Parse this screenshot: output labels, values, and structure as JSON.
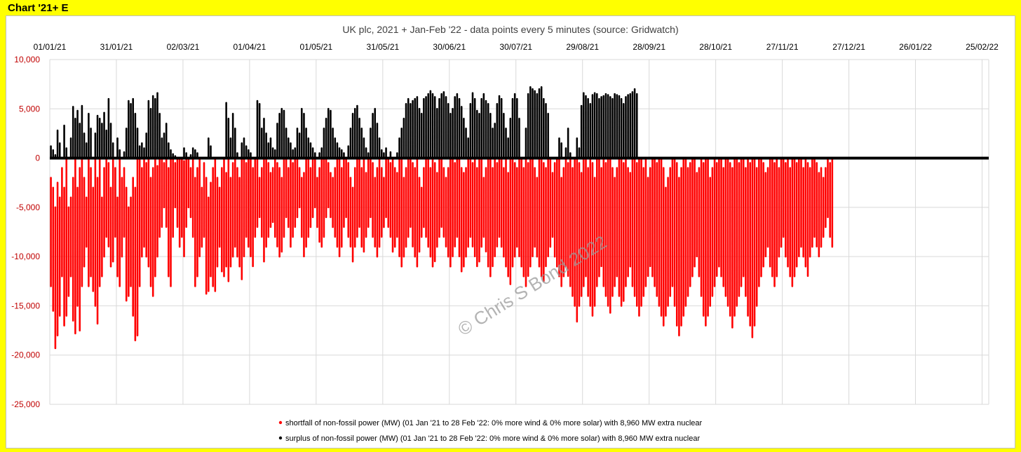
{
  "sheet_label": "Chart '21+ E",
  "watermark": "© Chris S Bond 2022",
  "colors": {
    "shortfall": "#ff0000",
    "surplus": "#000000",
    "y_tick_labels": "#c00000",
    "background": "#ffff00"
  },
  "chart_data": {
    "type": "scatter",
    "title": "UK plc, 2021 + Jan-Feb '22 - data points every 5 minutes (source: Gridwatch)",
    "xlabel": "",
    "ylabel": "",
    "x_tick_labels": [
      "01/01/21",
      "31/01/21",
      "02/03/21",
      "01/04/21",
      "01/05/21",
      "31/05/21",
      "30/06/21",
      "30/07/21",
      "29/08/21",
      "28/09/21",
      "28/10/21",
      "27/11/21",
      "27/12/21",
      "26/01/22",
      "25/02/22"
    ],
    "y_tick_labels": [
      "10,000",
      "5,000",
      "0",
      "-5,000",
      "-10,000",
      "-15,000",
      "-20,000",
      "-25,000"
    ],
    "y_ticks": [
      10000,
      5000,
      0,
      -5000,
      -10000,
      -15000,
      -20000,
      -25000
    ],
    "ylim": [
      -25000,
      10000
    ],
    "xlim": [
      "01/01/21",
      "28/02/22"
    ],
    "grid": true,
    "legend_position": "bottom",
    "series": [
      {
        "name": "shortfall of non-fossil power (MW) (01 Jan '21 to 28 Feb '22: 0% more wind & 0% more solar) with 8,960 MW extra nuclear",
        "color": "#ff0000",
        "y_min_range": [
          -19300,
          0
        ],
        "daily_min": [
          -13000,
          -15500,
          -19300,
          -18000,
          -16000,
          -12000,
          -17000,
          -16000,
          -14000,
          -12000,
          -16500,
          -17800,
          -15000,
          -17500,
          -13000,
          -11000,
          -9000,
          -13000,
          -12000,
          -13500,
          -15000,
          -16800,
          -13000,
          -12000,
          -10000,
          -8000,
          -9000,
          -11000,
          -10500,
          -8000,
          -12000,
          -13000,
          -10000,
          -8000,
          -14500,
          -14000,
          -13000,
          -16000,
          -18500,
          -18000,
          -13000,
          -10000,
          -9000,
          -10000,
          -11000,
          -13000,
          -14000,
          -12000,
          -10000,
          -8000,
          -7000,
          -5000,
          -7000,
          -12000,
          -13000,
          -8000,
          -5000,
          -7000,
          -9000,
          -8000,
          -10000,
          -7000,
          -5000,
          -6000,
          -8000,
          -13000,
          -12000,
          -10000,
          -9000,
          -8000,
          -13800,
          -13500,
          -12000,
          -13000,
          -13500,
          -11000,
          -9000,
          -11500,
          -12000,
          -11000,
          -12500,
          -11000,
          -10000,
          -9000,
          -10000,
          -11000,
          -12300,
          -10000,
          -8000,
          -9000,
          -10000,
          -11000,
          -8000,
          -7000,
          -6000,
          -8000,
          -10500,
          -9000,
          -8000,
          -7000,
          -6500,
          -8000,
          -9000,
          -10000,
          -9500,
          -8000,
          -6000,
          -7000,
          -9000,
          -8000,
          -7000,
          -6000,
          -5000,
          -8000,
          -10000,
          -9000,
          -8000,
          -7000,
          -6000,
          -5000,
          -7000,
          -8500,
          -9000,
          -8000,
          -6000,
          -5000,
          -6000,
          -7000,
          -8000,
          -9000,
          -10000,
          -9000,
          -7000,
          -6000,
          -8000,
          -9000,
          -10500,
          -9000,
          -8000,
          -7000,
          -9000,
          -9500,
          -8000,
          -7000,
          -6000,
          -8000,
          -9000,
          -10000,
          -9000,
          -8000,
          -7000,
          -6000,
          -7000,
          -8000,
          -9500,
          -9000,
          -8000,
          -10000,
          -11000,
          -10000,
          -9000,
          -8000,
          -7000,
          -9000,
          -10000,
          -11000,
          -9500,
          -8000,
          -7000,
          -8000,
          -9000,
          -10000,
          -11000,
          -10500,
          -9000,
          -8000,
          -7000,
          -8000,
          -9000,
          -10000,
          -11000,
          -10000,
          -9000,
          -8000,
          -10000,
          -11500,
          -11000,
          -10000,
          -9000,
          -8000,
          -9000,
          -10000,
          -11000,
          -10500,
          -9000,
          -8000,
          -9500,
          -11000,
          -12000,
          -11000,
          -10000,
          -9000,
          -8000,
          -9000,
          -10000,
          -11000,
          -12000,
          -12800,
          -11000,
          -10000,
          -9000,
          -10000,
          -11000,
          -12000,
          -13000,
          -12000,
          -11000,
          -10000,
          -9000,
          -10000,
          -11000,
          -12000,
          -12500,
          -11000,
          -10000,
          -9000,
          -8000,
          -10000,
          -11000,
          -12000,
          -13000,
          -12000,
          -11000,
          -12000,
          -13000,
          -14000,
          -15000,
          -16600,
          -15000,
          -14000,
          -13000,
          -12000,
          -14000,
          -15000,
          -16000,
          -15000,
          -13000,
          -12000,
          -11000,
          -13000,
          -14000,
          -15000,
          -15700,
          -14000,
          -13000,
          -12000,
          -14000,
          -15000,
          -14500,
          -13000,
          -12000,
          -11000,
          -13000,
          -14000,
          -15000,
          -16000,
          -15000,
          -14000,
          -13000,
          -12000,
          -11000,
          -12000,
          -13000,
          -14000,
          -15000,
          -16000,
          -17000,
          -16000,
          -15000,
          -14000,
          -13000,
          -15000,
          -17000,
          -18000,
          -17000,
          -16000,
          -15000,
          -14000,
          -13000,
          -12000,
          -11000,
          -10000,
          -12000,
          -14000,
          -16000,
          -17000,
          -16000,
          -15000,
          -14000,
          -13000,
          -12000,
          -11000,
          -12000,
          -13000,
          -14000,
          -15000,
          -16000,
          -17200,
          -16000,
          -15000,
          -14000,
          -13000,
          -12000,
          -14000,
          -16000,
          -17000,
          -18200,
          -17000,
          -15000,
          -13000,
          -12000,
          -11000,
          -10000,
          -9000,
          -11000,
          -12000,
          -13000,
          -12000,
          -10000,
          -9000,
          -8000,
          -10000,
          -11000,
          -12000,
          -13000,
          -12000,
          -11000,
          -10000,
          -9000,
          -10000,
          -11000,
          -12000,
          -10000,
          -9000,
          -8000,
          -9000,
          -10000,
          -9000,
          -8000,
          -7000,
          -6000,
          -8000,
          -9000
        ],
        "daily_max": [
          -2000,
          -3000,
          -5000,
          -2500,
          -4000,
          -1000,
          -3000,
          0,
          -5000,
          -4000,
          -2000,
          0,
          -3000,
          -1000,
          0,
          -2000,
          -4000,
          0,
          -1000,
          -3000,
          0,
          -2000,
          0,
          -4000,
          -1000,
          0,
          -500,
          -3000,
          0,
          -1000,
          -4000,
          0,
          -2000,
          -1000,
          -3000,
          -5000,
          -4000,
          -2000,
          -3000,
          0,
          0,
          -1000,
          0,
          -500,
          0,
          -2000,
          -1000,
          0,
          -800,
          0,
          0,
          -500,
          0,
          -1000,
          0,
          0,
          -500,
          0,
          0,
          0,
          -300,
          0,
          0,
          -1000,
          0,
          -2000,
          -1000,
          0,
          -3000,
          -500,
          -2000,
          -4000,
          -2500,
          -1000,
          0,
          -2000,
          -3000,
          -1000,
          0,
          -1500,
          0,
          -2000,
          -500,
          0,
          -1000,
          -2000,
          0,
          0,
          -500,
          0,
          0,
          -1000,
          0,
          0,
          -2000,
          -1000,
          0,
          0,
          -500,
          -1500,
          -1000,
          0,
          -500,
          -1000,
          -2000,
          0,
          0,
          -1000,
          0,
          -500,
          0,
          0,
          -1000,
          -2000,
          -1500,
          0,
          0,
          -1000,
          0,
          0,
          -2000,
          -1000,
          0,
          0,
          0,
          -500,
          -1500,
          -2000,
          -1000,
          0,
          0,
          -1000,
          0,
          0,
          -500,
          -2000,
          -3000,
          -1000,
          0,
          0,
          -1000,
          0,
          -1500,
          0,
          0,
          -500,
          -2000,
          -1000,
          0,
          -1000,
          -2000,
          0,
          0,
          -500,
          0,
          -1000,
          -1500,
          0,
          0,
          -2000,
          -1000,
          0,
          0,
          -500,
          -1000,
          0,
          -2000,
          -3000,
          -1000,
          0,
          0,
          -1000,
          0,
          -500,
          -1500,
          0,
          0,
          -1000,
          -2000,
          -1000,
          0,
          0,
          -500,
          0,
          0,
          -1000,
          -1500,
          -1000,
          0,
          0,
          -500,
          0,
          -1000,
          0,
          0,
          -2000,
          -1000,
          0,
          0,
          -1000,
          0,
          -500,
          0,
          0,
          -1000,
          0,
          -1500,
          0,
          0,
          -500,
          -1000,
          0,
          0,
          -1000,
          0,
          -500,
          0,
          0,
          -1000,
          -2000,
          0,
          0,
          -500,
          -1000,
          0,
          0,
          -1500,
          -500,
          0,
          0,
          -2000,
          -1000,
          0,
          -500,
          0,
          -1000,
          0,
          0,
          -500,
          -1500,
          0,
          0,
          -1000,
          0,
          -500,
          -2000,
          0,
          0,
          -1000,
          0,
          -500,
          0,
          0,
          -1000,
          -2000,
          -1000,
          0,
          0,
          -500,
          0,
          -1000,
          -1500,
          0,
          0,
          -500,
          0,
          0,
          -1000,
          0,
          -2000,
          -1000,
          0,
          0,
          -500,
          0,
          0,
          -1000,
          -3000,
          -2000,
          -1000,
          0,
          0,
          -500,
          -2000,
          -1000,
          0,
          0,
          -1000,
          -500,
          0,
          0,
          -1500,
          -1000,
          0,
          -500,
          0,
          0,
          -2000,
          -1000,
          0,
          -500,
          0,
          0,
          -1000,
          0,
          0,
          -500,
          -1000,
          0,
          0,
          -500,
          0,
          0,
          -1000,
          0,
          -500,
          0,
          0,
          -1000,
          0,
          0,
          -500,
          -1500,
          -1000,
          0,
          0,
          -500,
          0,
          -1000,
          0,
          0,
          -500,
          0,
          -1000,
          0,
          0,
          -500,
          0,
          0,
          -1000,
          0,
          -500,
          -1000,
          0,
          0,
          -500,
          -1500,
          -1000,
          -2000,
          -1000,
          0,
          -500,
          0,
          0,
          -1000,
          0
        ]
      },
      {
        "name": "surplus of non-fossil power (MW) (01 Jan '21 to 28 Feb '22: 0% more wind & 0% more solar) with 8,960 MW extra nuclear",
        "color": "#000000",
        "y_max_range": [
          0,
          7200
        ],
        "daily_max": [
          1200,
          800,
          300,
          2800,
          1500,
          0,
          3300,
          1000,
          0,
          2000,
          5200,
          4000,
          4800,
          3500,
          5300,
          2500,
          1500,
          4500,
          3000,
          0,
          2500,
          4300,
          4000,
          3500,
          4600,
          2800,
          6000,
          3500,
          1500,
          0,
          2000,
          800,
          0,
          600,
          3000,
          5800,
          5500,
          6000,
          4500,
          3000,
          1200,
          1500,
          1000,
          2500,
          5800,
          5000,
          6300,
          6000,
          6600,
          4500,
          2000,
          2500,
          3500,
          1500,
          800,
          400,
          200,
          0,
          0,
          0,
          1000,
          500,
          0,
          300,
          1000,
          800,
          500,
          0,
          0,
          0,
          0,
          2000,
          1200,
          0,
          0,
          0,
          0,
          0,
          0,
          5600,
          4000,
          2000,
          4500,
          3000,
          500,
          0,
          1500,
          2000,
          1200,
          800,
          500,
          0,
          0,
          5800,
          5500,
          3000,
          4000,
          2500,
          1500,
          2000,
          1000,
          800,
          3500,
          4500,
          5000,
          4800,
          3000,
          2000,
          1500,
          800,
          1000,
          3000,
          2500,
          5000,
          4500,
          3000,
          2000,
          1500,
          1000,
          500,
          0,
          500,
          1000,
          3000,
          4000,
          5000,
          4800,
          3000,
          2000,
          1500,
          1000,
          800,
          500,
          0,
          1200,
          3000,
          4500,
          5000,
          5300,
          4000,
          3000,
          2000,
          1000,
          500,
          3000,
          4500,
          5000,
          3500,
          2000,
          800,
          500,
          1000,
          0,
          600,
          0,
          0,
          500,
          2000,
          3000,
          4000,
          5500,
          6000,
          5500,
          5800,
          6000,
          6200,
          5000,
          4500,
          6000,
          6200,
          6500,
          6800,
          6500,
          6200,
          5000,
          6000,
          6500,
          6700,
          6200,
          5500,
          4500,
          5000,
          6200,
          6500,
          6000,
          5200,
          4000,
          3000,
          2000,
          5500,
          6600,
          6000,
          4800,
          4500,
          6000,
          6500,
          5800,
          5500,
          4500,
          3000,
          3500,
          5500,
          6300,
          6000,
          4500,
          3000,
          2000,
          4000,
          6000,
          6500,
          6000,
          4000,
          0,
          0,
          3000,
          6500,
          7200,
          7000,
          6800,
          6500,
          7000,
          7200,
          6000,
          5500,
          4500,
          0,
          0,
          0,
          0,
          2000,
          1500,
          0,
          1000,
          3000,
          500,
          0,
          0,
          2000,
          1000,
          5300,
          6600,
          6300,
          6000,
          5500,
          6400,
          6600,
          6500,
          6000,
          6200,
          6300,
          6500,
          6400,
          6200,
          6000,
          6500,
          6400,
          6300,
          6000,
          5500,
          6200,
          6400,
          6500,
          6700,
          7000,
          6500
        ]
      }
    ]
  }
}
